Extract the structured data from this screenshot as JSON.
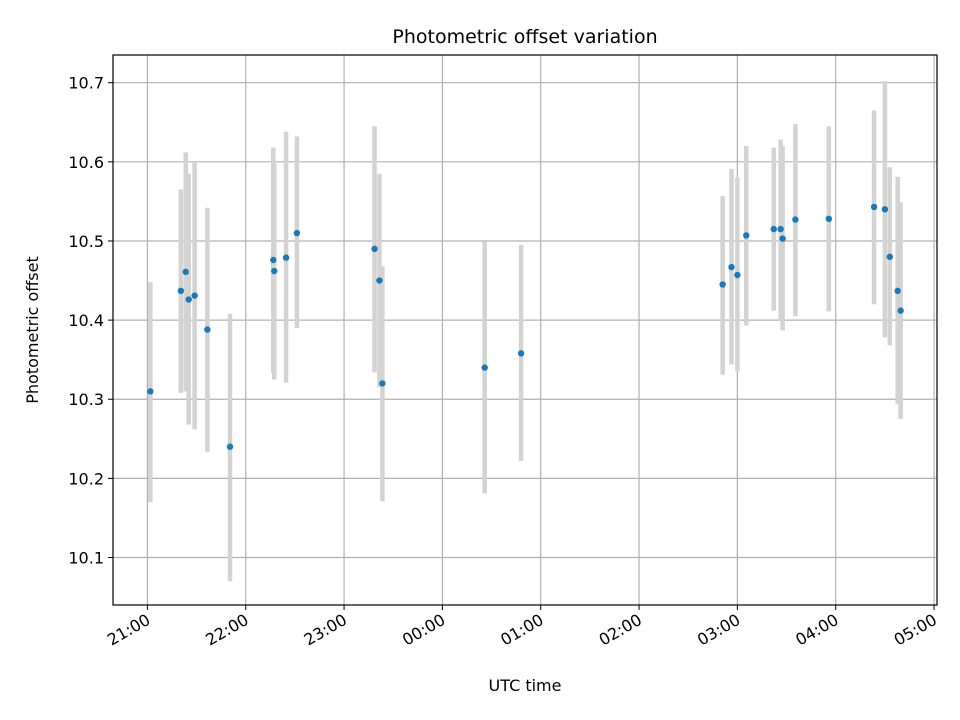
{
  "chart_data": {
    "type": "scatter",
    "title": "Photometric offset variation",
    "xlabel": "UTC time",
    "ylabel": "Photometric offset",
    "ylim": [
      10.04,
      10.735
    ],
    "xlim_hours": [
      -0.35,
      8.03
    ],
    "grid": true,
    "x_unit": "hours since 21:00 UTC",
    "x_ticks": [
      {
        "value": 0,
        "label": "21:00"
      },
      {
        "value": 1,
        "label": "22:00"
      },
      {
        "value": 2,
        "label": "23:00"
      },
      {
        "value": 3,
        "label": "00:00"
      },
      {
        "value": 4,
        "label": "01:00"
      },
      {
        "value": 5,
        "label": "02:00"
      },
      {
        "value": 6,
        "label": "03:00"
      },
      {
        "value": 7,
        "label": "04:00"
      },
      {
        "value": 8,
        "label": "05:00"
      }
    ],
    "y_ticks": [
      {
        "value": 10.1,
        "label": "10.1"
      },
      {
        "value": 10.2,
        "label": "10.2"
      },
      {
        "value": 10.3,
        "label": "10.3"
      },
      {
        "value": 10.4,
        "label": "10.4"
      },
      {
        "value": 10.5,
        "label": "10.5"
      },
      {
        "value": 10.6,
        "label": "10.6"
      },
      {
        "value": 10.7,
        "label": "10.7"
      }
    ],
    "colors": {
      "marker": "#1f77b4",
      "errorbar": "#d3d3d3",
      "grid": "#b0b0b0",
      "axes": "#000000"
    },
    "points": [
      {
        "x": 0.03,
        "y": 10.31,
        "err_low": 10.17,
        "err_high": 10.448
      },
      {
        "x": 0.34,
        "y": 10.437,
        "err_low": 10.308,
        "err_high": 10.565
      },
      {
        "x": 0.39,
        "y": 10.461,
        "err_low": 10.31,
        "err_high": 10.612
      },
      {
        "x": 0.42,
        "y": 10.426,
        "err_low": 10.268,
        "err_high": 10.585
      },
      {
        "x": 0.48,
        "y": 10.431,
        "err_low": 10.262,
        "err_high": 10.6
      },
      {
        "x": 0.61,
        "y": 10.388,
        "err_low": 10.233,
        "err_high": 10.542
      },
      {
        "x": 0.84,
        "y": 10.24,
        "err_low": 10.07,
        "err_high": 10.408
      },
      {
        "x": 1.28,
        "y": 10.476,
        "err_low": 10.333,
        "err_high": 10.618
      },
      {
        "x": 1.29,
        "y": 10.462,
        "err_low": 10.325,
        "err_high": 10.598
      },
      {
        "x": 1.41,
        "y": 10.479,
        "err_low": 10.321,
        "err_high": 10.638
      },
      {
        "x": 1.52,
        "y": 10.51,
        "err_low": 10.39,
        "err_high": 10.632
      },
      {
        "x": 2.31,
        "y": 10.49,
        "err_low": 10.334,
        "err_high": 10.645
      },
      {
        "x": 2.36,
        "y": 10.45,
        "err_low": 10.315,
        "err_high": 10.585
      },
      {
        "x": 2.39,
        "y": 10.32,
        "err_low": 10.171,
        "err_high": 10.468
      },
      {
        "x": 3.43,
        "y": 10.34,
        "err_low": 10.181,
        "err_high": 10.499
      },
      {
        "x": 3.8,
        "y": 10.358,
        "err_low": 10.222,
        "err_high": 10.495
      },
      {
        "x": 5.85,
        "y": 10.445,
        "err_low": 10.331,
        "err_high": 10.557
      },
      {
        "x": 5.94,
        "y": 10.467,
        "err_low": 10.344,
        "err_high": 10.591
      },
      {
        "x": 6.0,
        "y": 10.457,
        "err_low": 10.335,
        "err_high": 10.58
      },
      {
        "x": 6.09,
        "y": 10.507,
        "err_low": 10.393,
        "err_high": 10.62
      },
      {
        "x": 6.37,
        "y": 10.515,
        "err_low": 10.412,
        "err_high": 10.618
      },
      {
        "x": 6.44,
        "y": 10.515,
        "err_low": 10.4,
        "err_high": 10.628
      },
      {
        "x": 6.46,
        "y": 10.503,
        "err_low": 10.387,
        "err_high": 10.62
      },
      {
        "x": 6.59,
        "y": 10.527,
        "err_low": 10.405,
        "err_high": 10.648
      },
      {
        "x": 6.93,
        "y": 10.528,
        "err_low": 10.411,
        "err_high": 10.645
      },
      {
        "x": 7.39,
        "y": 10.543,
        "err_low": 10.42,
        "err_high": 10.665
      },
      {
        "x": 7.5,
        "y": 10.54,
        "err_low": 10.378,
        "err_high": 10.702
      },
      {
        "x": 7.55,
        "y": 10.48,
        "err_low": 10.368,
        "err_high": 10.593
      },
      {
        "x": 7.63,
        "y": 10.437,
        "err_low": 10.294,
        "err_high": 10.581
      },
      {
        "x": 7.66,
        "y": 10.412,
        "err_low": 10.275,
        "err_high": 10.549
      }
    ]
  }
}
